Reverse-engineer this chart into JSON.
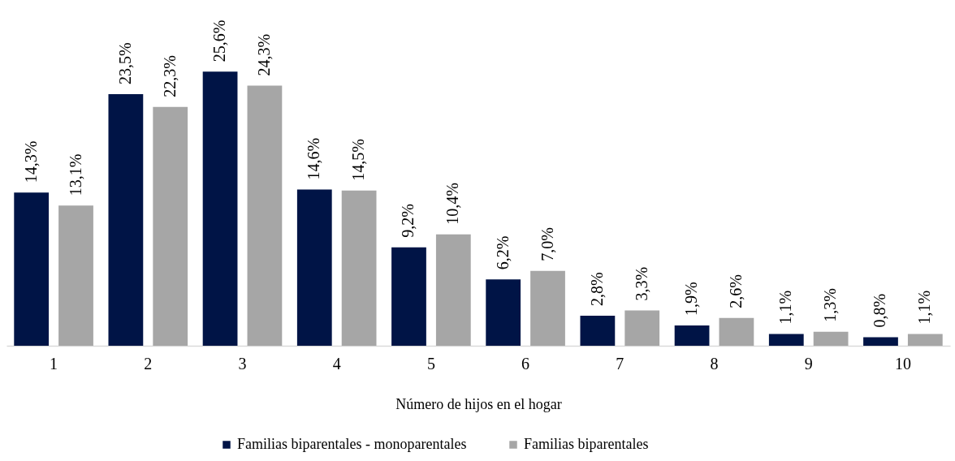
{
  "chart_data": {
    "type": "bar",
    "xlabel": "Número de hijos en el hogar",
    "legend": "bottom",
    "categories": [
      "1",
      "2",
      "3",
      "4",
      "5",
      "6",
      "7",
      "8",
      "9",
      "10"
    ],
    "series": [
      {
        "name": "Familias biparentales - monoparentales",
        "color": "#001446",
        "values": [
          14.3,
          23.5,
          25.6,
          14.6,
          9.2,
          6.2,
          2.8,
          1.9,
          1.1,
          0.8
        ],
        "value_labels": [
          "14,3%",
          "23,5%",
          "25,6%",
          "14,6%",
          "9,2%",
          "6,2%",
          "2,8%",
          "1,9%",
          "1,1%",
          "0,8%"
        ]
      },
      {
        "name": "Familias biparentales",
        "color": "#a6a6a6",
        "values": [
          13.1,
          22.3,
          24.3,
          14.5,
          10.4,
          7.0,
          3.3,
          2.6,
          1.3,
          1.1
        ],
        "value_labels": [
          "13,1%",
          "22,3%",
          "24,3%",
          "14,5%",
          "10,4%",
          "7,0%",
          "3,3%",
          "2,6%",
          "1,3%",
          "1,1%"
        ]
      }
    ]
  }
}
